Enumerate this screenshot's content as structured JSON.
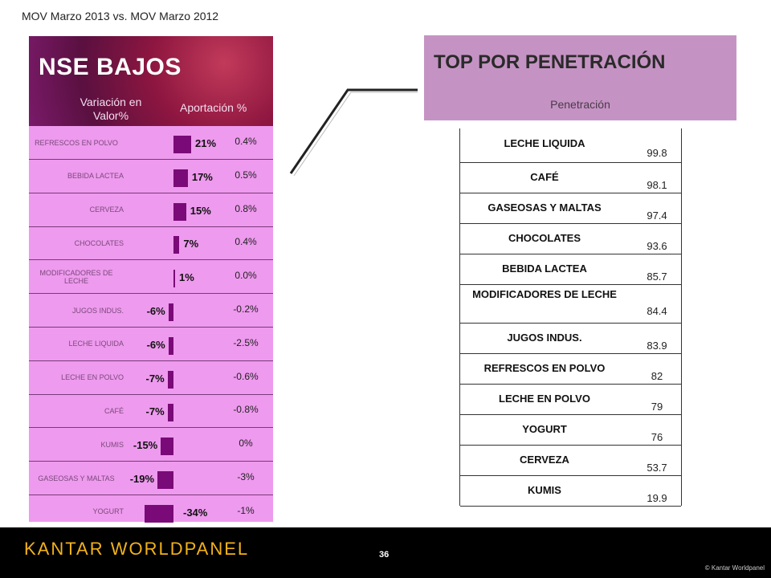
{
  "subtitle": "MOV Marzo 2013  vs. MOV Marzo 2012",
  "left_panel": {
    "title": "NSE BAJOS",
    "col_variation": "Variación en Valor%",
    "col_contribution": "Aportación %",
    "bar_color": "#7a0a78",
    "background_color": "#ee9aee",
    "rows": [
      {
        "label": "REFRESCOS EN POLVO",
        "variation": 21,
        "variation_label": "21%",
        "contribution": "0.4%"
      },
      {
        "label": "BEBIDA LACTEA",
        "variation": 17,
        "variation_label": "17%",
        "contribution": "0.5%"
      },
      {
        "label": "CERVEZA",
        "variation": 15,
        "variation_label": "15%",
        "contribution": "0.8%"
      },
      {
        "label": "CHOCOLATES",
        "variation": 7,
        "variation_label": "7%",
        "contribution": "0.4%"
      },
      {
        "label": "MODIFICADORES DE LECHE",
        "variation": 1,
        "variation_label": "1%",
        "contribution": "0.0%"
      },
      {
        "label": "JUGOS INDUS.",
        "variation": -6,
        "variation_label": "-6%",
        "contribution": "-0.2%"
      },
      {
        "label": "LECHE LIQUIDA",
        "variation": -6,
        "variation_label": "-6%",
        "contribution": "-2.5%"
      },
      {
        "label": "LECHE EN POLVO",
        "variation": -7,
        "variation_label": "-7%",
        "contribution": "-0.6%"
      },
      {
        "label": "CAFÉ",
        "variation": -7,
        "variation_label": "-7%",
        "contribution": "-0.8%"
      },
      {
        "label": "KUMIS",
        "variation": -15,
        "variation_label": "-15%",
        "contribution": "0%"
      },
      {
        "label": "GASEOSAS Y MALTAS",
        "variation": -19,
        "variation_label": "-19%",
        "contribution": "-3%"
      },
      {
        "label": "YOGURT",
        "variation": -34,
        "variation_label": "-34%",
        "contribution": "-1%"
      }
    ]
  },
  "right_panel": {
    "title": "TOP POR PENETRACIÓN",
    "column_label": "Penetración",
    "header_color": "#c593c3",
    "rows": [
      {
        "name": "LECHE LIQUIDA",
        "value": "99.8"
      },
      {
        "name": "CAFÉ",
        "value": "98.1"
      },
      {
        "name": "GASEOSAS Y MALTAS",
        "value": "97.4"
      },
      {
        "name": "CHOCOLATES",
        "value": "93.6"
      },
      {
        "name": "BEBIDA LACTEA",
        "value": "85.7"
      },
      {
        "name": "MODIFICADORES DE LECHE",
        "value": "84.4"
      },
      {
        "name": "JUGOS INDUS.",
        "value": "83.9"
      },
      {
        "name": "REFRESCOS EN POLVO",
        "value": "82"
      },
      {
        "name": "LECHE EN POLVO",
        "value": "79"
      },
      {
        "name": "YOGURT",
        "value": "76"
      },
      {
        "name": "CERVEZA",
        "value": "53.7"
      },
      {
        "name": "KUMIS",
        "value": "19.9"
      }
    ]
  },
  "footer": {
    "logo": "KANTAR WORLDPANEL",
    "page_number": "36",
    "copyright": "© Kantar Worldpanel"
  }
}
